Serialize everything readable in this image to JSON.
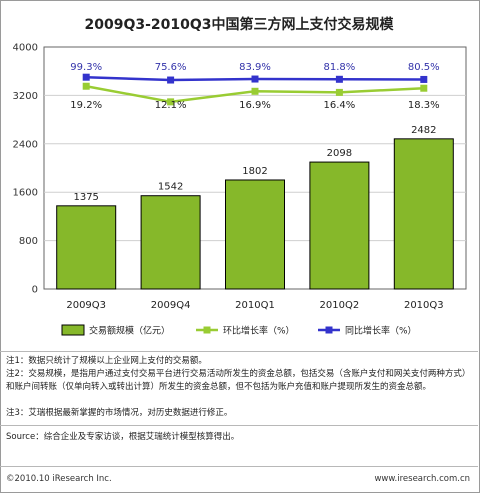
{
  "chart_data": {
    "type": "bar",
    "title": "2009Q3-2010Q3中国第三方网上支付交易规模",
    "categories": [
      "2009Q3",
      "2009Q4",
      "2010Q1",
      "2010Q2",
      "2010Q3"
    ],
    "series": [
      {
        "name": "交易额规模（亿元）",
        "type": "bar",
        "color": "#86b82a",
        "values": [
          1375,
          1542,
          1802,
          2098,
          2482
        ],
        "labels": [
          "1375",
          "1542",
          "1802",
          "2098",
          "2482"
        ]
      },
      {
        "name": "环比增长率（%）",
        "type": "line",
        "color": "#99cc33",
        "values": [
          19.2,
          12.1,
          16.9,
          16.4,
          18.3
        ],
        "labels": [
          "19.2%",
          "12.1%",
          "16.9%",
          "16.4%",
          "18.3%"
        ]
      },
      {
        "name": "同比增长率（%）",
        "type": "line",
        "color": "#3333cc",
        "values": [
          99.3,
          75.6,
          83.9,
          81.8,
          80.5
        ],
        "labels": [
          "99.3%",
          "75.6%",
          "83.9%",
          "81.8%",
          "80.5%"
        ]
      }
    ],
    "yticks": [
      "4000",
      "3200",
      "2400",
      "1600",
      "800",
      "0"
    ],
    "ylim": [
      0,
      4000
    ],
    "grid": true,
    "legend": "bottom"
  },
  "notes": [
    "注1：数据只统计了规模以上企业网上支付的交易额。",
    "注2：交易规模，是指用户通过支付交易平台进行交易活动所发生的资金总额，包括交易（含账户支付和网关支付两种方式）和账户间转账（仅单向转入或转出计算）所发生的资金总额，但不包括为账户充值和账户提现所发生的资金总额。",
    "注3：艾瑞根据最新掌握的市场情况，对历史数据进行修正。"
  ],
  "source": "Source：综合企业及专家访谈，根据艾瑞统计模型核算得出。",
  "copyright": "©2010.10 iResearch Inc.",
  "website": "www.iresearch.com.cn"
}
